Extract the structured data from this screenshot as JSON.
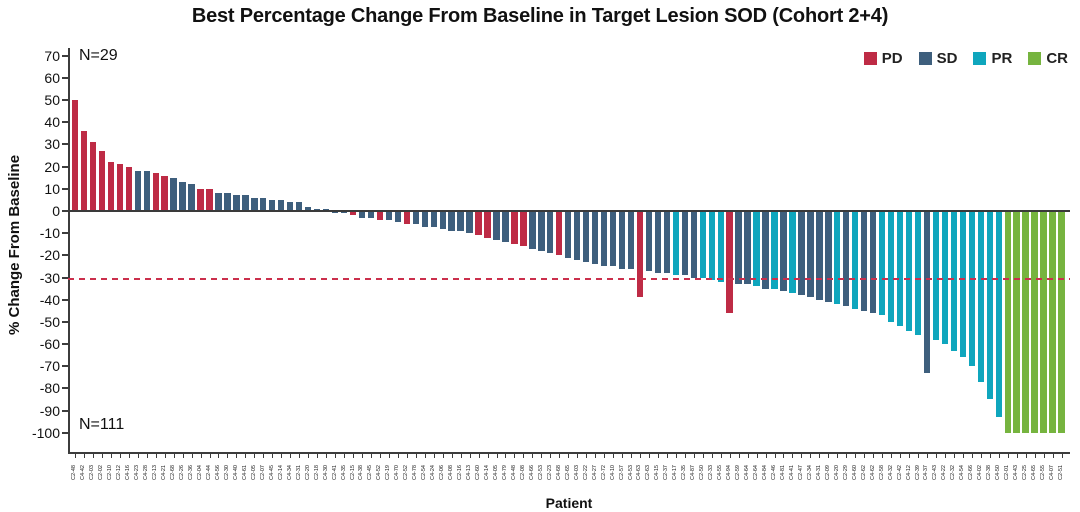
{
  "title": "Best Percentage Change From Baseline in Target Lesion SOD (Cohort 2+4)",
  "annotations": {
    "n_top": "N=29",
    "n_bottom": "N=111"
  },
  "legend": [
    {
      "label": "PD",
      "color": "#be2b45"
    },
    {
      "label": "SD",
      "color": "#3e5f7d"
    },
    {
      "label": "PR",
      "color": "#0fa6bd"
    },
    {
      "label": "CR",
      "color": "#76b43f"
    }
  ],
  "chart_data": {
    "type": "bar",
    "subtype": "waterfall",
    "title": "Best Percentage Change From Baseline in Target Lesion SOD (Cohort 2+4)",
    "xlabel": "Patient",
    "ylabel": "% Change From Baseline",
    "ylim": [
      -100,
      70
    ],
    "yticks": [
      70,
      60,
      50,
      40,
      30,
      20,
      10,
      0,
      -10,
      -20,
      -30,
      -40,
      -50,
      -60,
      -70,
      -80,
      -90,
      -100
    ],
    "grid": false,
    "legend_position": "top-right",
    "reference_line": {
      "y": -30,
      "style": "dashed",
      "color": "#cb2f4c"
    },
    "groups": {
      "PD": "#be2b45",
      "SD": "#3e5f7d",
      "PR": "#0fa6bd",
      "CR": "#76b43f"
    },
    "patients": [
      [
        "C2-48",
        50,
        "PD"
      ],
      [
        "C4-42",
        36,
        "PD"
      ],
      [
        "C2-03",
        31,
        "PD"
      ],
      [
        "C2-02",
        27,
        "PD"
      ],
      [
        "C2-10",
        22,
        "PD"
      ],
      [
        "C2-12",
        21,
        "PD"
      ],
      [
        "C4-16",
        20,
        "PD"
      ],
      [
        "C4-23",
        18,
        "SD"
      ],
      [
        "C4-28",
        18,
        "SD"
      ],
      [
        "C2-13",
        17,
        "PD"
      ],
      [
        "C4-21",
        16,
        "PD"
      ],
      [
        "C2-68",
        15,
        "SD"
      ],
      [
        "C2-26",
        13,
        "SD"
      ],
      [
        "C2-36",
        12,
        "SD"
      ],
      [
        "C2-04",
        10,
        "PD"
      ],
      [
        "C2-44",
        10,
        "PD"
      ],
      [
        "C4-56",
        8,
        "SD"
      ],
      [
        "C2-30",
        8,
        "SD"
      ],
      [
        "C4-40",
        7,
        "SD"
      ],
      [
        "C4-61",
        7,
        "SD"
      ],
      [
        "C2-05",
        6,
        "SD"
      ],
      [
        "C2-07",
        6,
        "SD"
      ],
      [
        "C4-45",
        5,
        "SD"
      ],
      [
        "C2-14",
        5,
        "SD"
      ],
      [
        "C4-34",
        4,
        "SD"
      ],
      [
        "C2-31",
        4,
        "SD"
      ],
      [
        "C2-20",
        2,
        "SD"
      ],
      [
        "C2-18",
        1,
        "SD"
      ],
      [
        "C4-30",
        1,
        "SD"
      ],
      [
        "C2-41",
        -1,
        "SD"
      ],
      [
        "C4-35",
        -1,
        "SD"
      ],
      [
        "C2-15",
        -2,
        "PD"
      ],
      [
        "C4-38",
        -3,
        "SD"
      ],
      [
        "C2-45",
        -3,
        "SD"
      ],
      [
        "C4-52",
        -4,
        "PD"
      ],
      [
        "C2-19",
        -4,
        "SD"
      ],
      [
        "C4-70",
        -5,
        "SD"
      ],
      [
        "C2-52",
        -6,
        "PD"
      ],
      [
        "C4-78",
        -6,
        "SD"
      ],
      [
        "C2-54",
        -7,
        "SD"
      ],
      [
        "C4-24",
        -7,
        "SD"
      ],
      [
        "C2-06",
        -8,
        "SD"
      ],
      [
        "C4-08",
        -9,
        "SD"
      ],
      [
        "C2-16",
        -9,
        "SD"
      ],
      [
        "C4-13",
        -10,
        "SD"
      ],
      [
        "C2-60",
        -11,
        "PD"
      ],
      [
        "C4-14",
        -12,
        "PD"
      ],
      [
        "C4-05",
        -13,
        "SD"
      ],
      [
        "C4-79",
        -14,
        "SD"
      ],
      [
        "C4-48",
        -15,
        "PD"
      ],
      [
        "C2-08",
        -16,
        "PD"
      ],
      [
        "C4-66",
        -17,
        "SD"
      ],
      [
        "C2-53",
        -18,
        "SD"
      ],
      [
        "C2-23",
        -19,
        "SD"
      ],
      [
        "C4-68",
        -20,
        "PD"
      ],
      [
        "C2-65",
        -21,
        "SD"
      ],
      [
        "C4-03",
        -22,
        "SD"
      ],
      [
        "C2-22",
        -23,
        "SD"
      ],
      [
        "C4-27",
        -24,
        "SD"
      ],
      [
        "C2-72",
        -25,
        "SD"
      ],
      [
        "C4-10",
        -25,
        "SD"
      ],
      [
        "C2-57",
        -26,
        "SD"
      ],
      [
        "C4-53",
        -26,
        "SD"
      ],
      [
        "C4-63",
        -39,
        "PD"
      ],
      [
        "C2-63",
        -27,
        "SD"
      ],
      [
        "C4-15",
        -28,
        "SD"
      ],
      [
        "C2-37",
        -28,
        "SD"
      ],
      [
        "C4-17",
        -29,
        "PR"
      ],
      [
        "C2-35",
        -29,
        "SD"
      ],
      [
        "C4-87",
        -30,
        "SD"
      ],
      [
        "C2-50",
        -30,
        "PR"
      ],
      [
        "C2-33",
        -31,
        "PR"
      ],
      [
        "C4-55",
        -32,
        "PR"
      ],
      [
        "C4-94",
        -46,
        "PD"
      ],
      [
        "C2-59",
        -33,
        "SD"
      ],
      [
        "C4-64",
        -33,
        "SD"
      ],
      [
        "C2-64",
        -34,
        "PR"
      ],
      [
        "C4-84",
        -35,
        "SD"
      ],
      [
        "C2-46",
        -35,
        "PR"
      ],
      [
        "C4-81",
        -36,
        "SD"
      ],
      [
        "C4-41",
        -37,
        "PR"
      ],
      [
        "C2-47",
        -38,
        "SD"
      ],
      [
        "C2-34",
        -39,
        "SD"
      ],
      [
        "C4-31",
        -40,
        "SD"
      ],
      [
        "C2-09",
        -41,
        "SD"
      ],
      [
        "C4-20",
        -42,
        "PR"
      ],
      [
        "C2-29",
        -43,
        "SD"
      ],
      [
        "C4-60",
        -44,
        "PR"
      ],
      [
        "C2-62",
        -45,
        "SD"
      ],
      [
        "C4-62",
        -46,
        "SD"
      ],
      [
        "C2-58",
        -47,
        "PR"
      ],
      [
        "C4-32",
        -50,
        "PR"
      ],
      [
        "C2-42",
        -52,
        "PR"
      ],
      [
        "C4-12",
        -54,
        "PR"
      ],
      [
        "C2-39",
        -56,
        "PR"
      ],
      [
        "C4-37",
        -73,
        "SD"
      ],
      [
        "C2-43",
        -58,
        "PR"
      ],
      [
        "C4-22",
        -60,
        "PR"
      ],
      [
        "C2-32",
        -63,
        "PR"
      ],
      [
        "C4-54",
        -66,
        "PR"
      ],
      [
        "C2-66",
        -70,
        "PR"
      ],
      [
        "C4-02",
        -77,
        "PR"
      ],
      [
        "C2-38",
        -85,
        "PR"
      ],
      [
        "C4-50",
        -93,
        "PR"
      ],
      [
        "C2-01",
        -100,
        "CR"
      ],
      [
        "C4-43",
        -100,
        "CR"
      ],
      [
        "C2-25",
        -100,
        "CR"
      ],
      [
        "C4-65",
        -100,
        "CR"
      ],
      [
        "C2-55",
        -100,
        "CR"
      ],
      [
        "C4-07",
        -100,
        "CR"
      ],
      [
        "C2-51",
        -100,
        "CR"
      ]
    ]
  }
}
